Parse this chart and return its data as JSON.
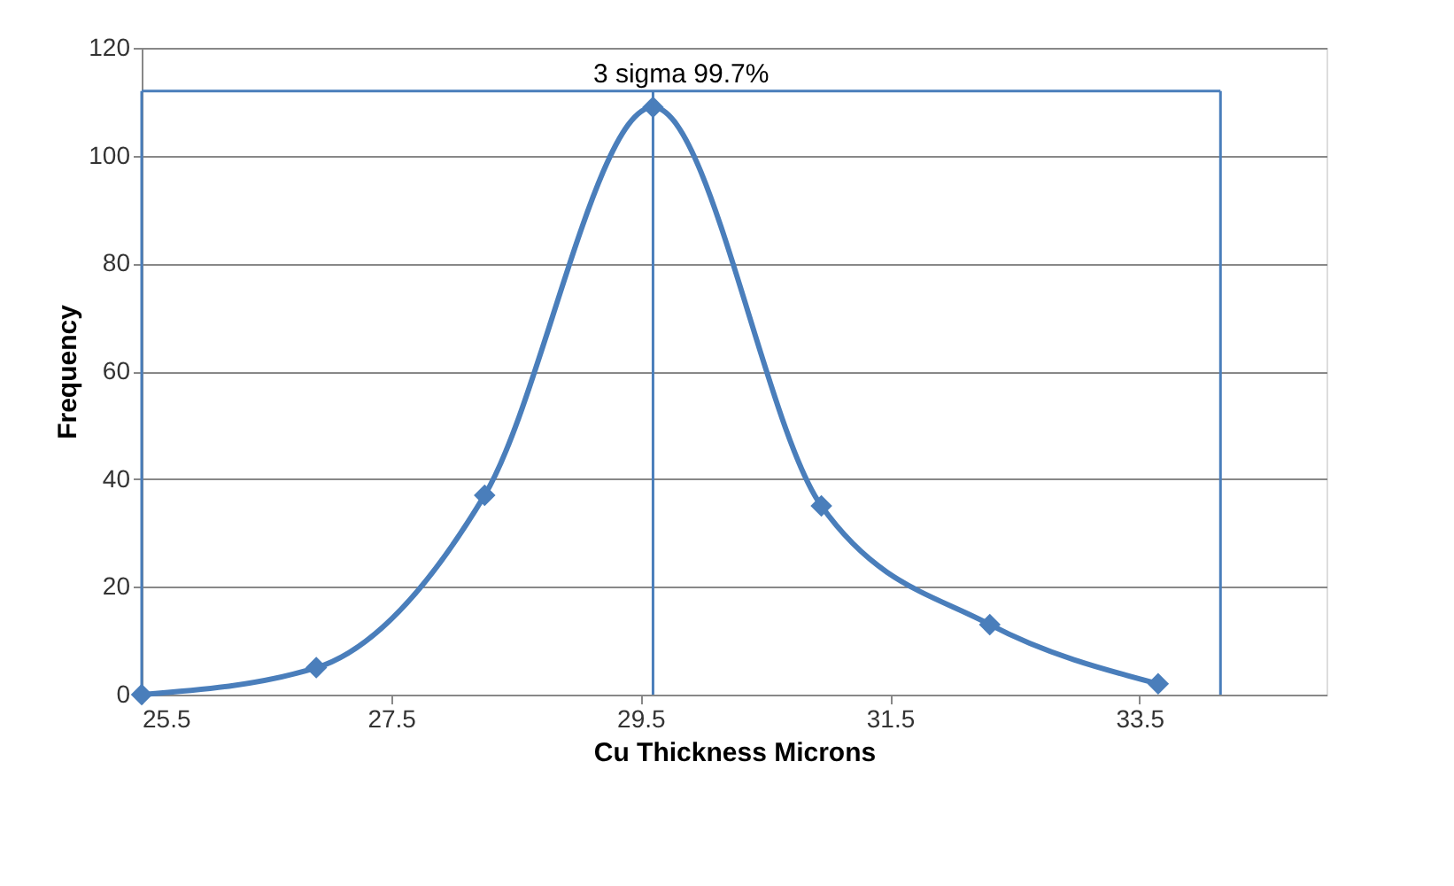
{
  "chart_data": {
    "type": "line",
    "xlabel": "Cu Thickness Microns",
    "ylabel": "Frequency",
    "x": [
      25.5,
      26.9,
      28.25,
      29.6,
      30.95,
      32.3,
      33.65
    ],
    "series": [
      {
        "color": "#4a7ebb",
        "values": [
          0,
          5,
          37,
          109,
          35,
          13,
          2
        ]
      }
    ],
    "marker": "diamond",
    "line_style": "solid",
    "grid": "y",
    "xlim": [
      25.5,
      35
    ],
    "xticks": [
      25.5,
      27.5,
      29.5,
      31.5,
      33.5
    ],
    "ylim": [
      0,
      120
    ],
    "yticks": [
      0,
      20,
      40,
      60,
      80,
      100,
      120
    ],
    "ref_lines": [
      {
        "axis": "x",
        "value": 25.5,
        "color": "#4a7ebb"
      },
      {
        "axis": "x",
        "value": 29.6,
        "color": "#4a7ebb"
      },
      {
        "axis": "x",
        "value": 34.15,
        "color": "#4a7ebb"
      },
      {
        "axis": "y",
        "value": 112,
        "label": "3 sigma 99.7%",
        "color": "#4a7ebb"
      }
    ]
  }
}
